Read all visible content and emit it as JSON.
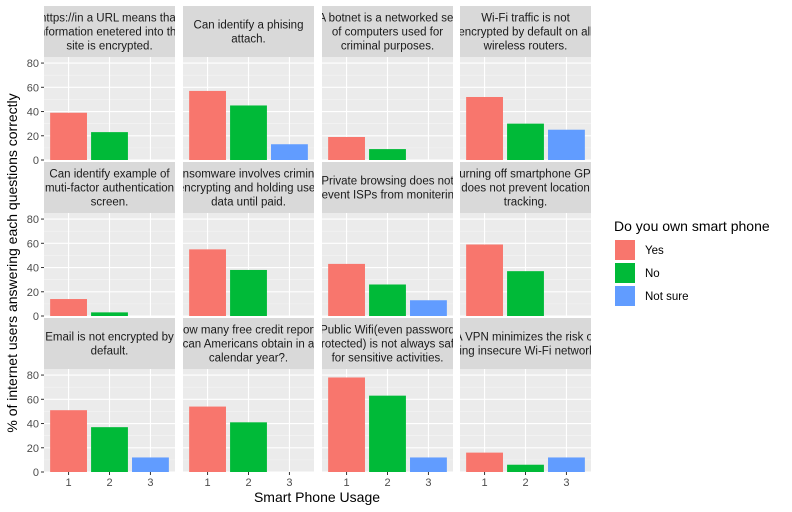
{
  "chart_data": {
    "type": "bar",
    "xlabel": "Smart Phone Usage",
    "ylabel": "% of internet users answering each questions correctly",
    "categories": [
      "1",
      "2",
      "3"
    ],
    "ylim": [
      0,
      85
    ],
    "yticks": [
      0,
      20,
      40,
      60,
      80
    ],
    "grid": true,
    "legend": {
      "title": "Do you own smart phone",
      "position": "right",
      "entries": [
        {
          "name": "Yes",
          "color": "#F8766D"
        },
        {
          "name": "No",
          "color": "#00BA38"
        },
        {
          "name": "Not sure",
          "color": "#619CFF"
        }
      ]
    },
    "facets": [
      {
        "title": [
          "https://in a URL means that",
          "information enetered into the",
          "site is encrypted."
        ],
        "values": [
          {
            "x": 1,
            "y": 39,
            "group": "Yes"
          },
          {
            "x": 2,
            "y": 23,
            "group": "No"
          }
        ]
      },
      {
        "title": [
          "Can identify a phising",
          "attach."
        ],
        "values": [
          {
            "x": 1,
            "y": 57,
            "group": "Yes"
          },
          {
            "x": 2,
            "y": 45,
            "group": "No"
          },
          {
            "x": 3,
            "y": 13,
            "group": "Not sure"
          }
        ]
      },
      {
        "title": [
          "A botnet is a networked set",
          "of computers used for",
          "criminal purposes."
        ],
        "values": [
          {
            "x": 1,
            "y": 19,
            "group": "Yes"
          },
          {
            "x": 2,
            "y": 9,
            "group": "No"
          }
        ]
      },
      {
        "title": [
          "Wi-Fi traffic is not",
          "encrypted by default on all",
          "wireless routers."
        ],
        "values": [
          {
            "x": 1,
            "y": 52,
            "group": "Yes"
          },
          {
            "x": 2,
            "y": 30,
            "group": "No"
          },
          {
            "x": 3,
            "y": 25,
            "group": "Not sure"
          }
        ]
      },
      {
        "title": [
          "Can identify example of",
          "muti-factor authentication",
          "screen."
        ],
        "values": [
          {
            "x": 1,
            "y": 14,
            "group": "Yes"
          },
          {
            "x": 2,
            "y": 3,
            "group": "No"
          }
        ]
      },
      {
        "title": [
          "Ransomware involves criminals",
          "encrypting and holding user",
          "data until paid."
        ],
        "values": [
          {
            "x": 1,
            "y": 55,
            "group": "Yes"
          },
          {
            "x": 2,
            "y": 38,
            "group": "No"
          }
        ]
      },
      {
        "title": [
          "Private browsing does not",
          "prevent ISPs from monitering."
        ],
        "values": [
          {
            "x": 1,
            "y": 43,
            "group": "Yes"
          },
          {
            "x": 2,
            "y": 26,
            "group": "No"
          },
          {
            "x": 3,
            "y": 13,
            "group": "Not sure"
          }
        ]
      },
      {
        "title": [
          "Turning off smartphone GPS",
          "does not prevent location",
          "tracking."
        ],
        "values": [
          {
            "x": 1,
            "y": 59,
            "group": "Yes"
          },
          {
            "x": 2,
            "y": 37,
            "group": "No"
          }
        ]
      },
      {
        "title": [
          "Email is not encrypted by",
          "default."
        ],
        "values": [
          {
            "x": 1,
            "y": 51,
            "group": "Yes"
          },
          {
            "x": 2,
            "y": 37,
            "group": "No"
          },
          {
            "x": 3,
            "y": 12,
            "group": "Not sure"
          }
        ]
      },
      {
        "title": [
          "How many free credit reports",
          "can Americans obtain in a",
          "calendar year?."
        ],
        "values": [
          {
            "x": 1,
            "y": 54,
            "group": "Yes"
          },
          {
            "x": 2,
            "y": 41,
            "group": "No"
          }
        ]
      },
      {
        "title": [
          "Public Wifi(even password",
          "protected) is not always safe",
          "for sensitive activities."
        ],
        "values": [
          {
            "x": 1,
            "y": 78,
            "group": "Yes"
          },
          {
            "x": 2,
            "y": 63,
            "group": "No"
          },
          {
            "x": 3,
            "y": 12,
            "group": "Not sure"
          }
        ]
      },
      {
        "title": [
          "A VPN minimizes the risk of",
          "using insecure Wi-Fi networks."
        ],
        "values": [
          {
            "x": 1,
            "y": 16,
            "group": "Yes"
          },
          {
            "x": 2,
            "y": 6,
            "group": "No"
          },
          {
            "x": 3,
            "y": 12,
            "group": "Not sure"
          }
        ]
      }
    ]
  }
}
